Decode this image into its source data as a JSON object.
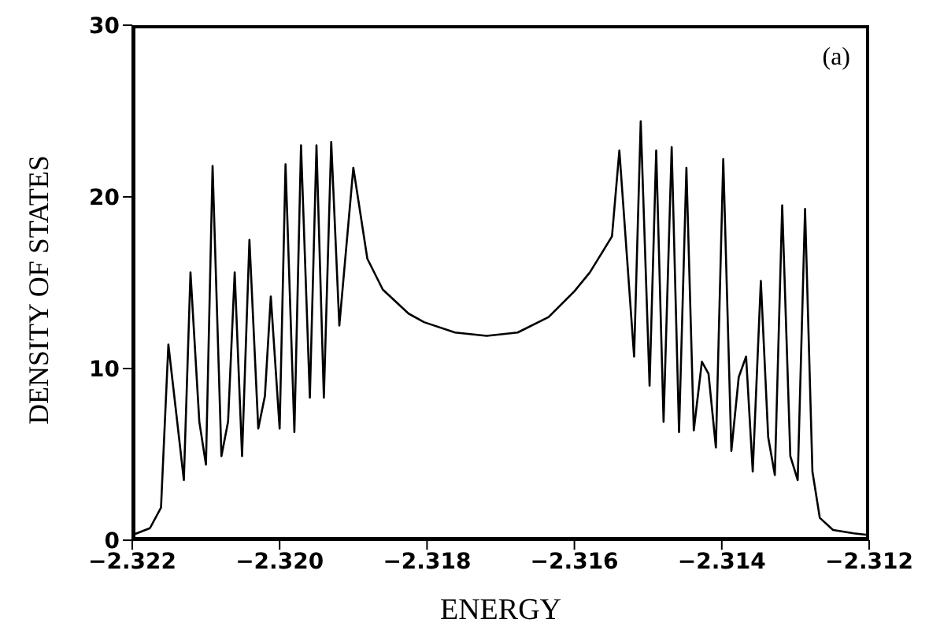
{
  "chart_data": {
    "type": "line",
    "xlabel": "ENERGY",
    "ylabel": "DENSITY OF STATES",
    "annotations": [
      "(a)"
    ],
    "xlim": [
      -2.322,
      -2.312
    ],
    "xticks": [
      {
        "value": -2.322,
        "label": "−2.322"
      },
      {
        "value": -2.32,
        "label": "−2.320"
      },
      {
        "value": -2.318,
        "label": "−2.318"
      },
      {
        "value": -2.316,
        "label": "−2.316"
      },
      {
        "value": -2.314,
        "label": "−2.314"
      },
      {
        "value": -2.312,
        "label": "−2.312"
      }
    ],
    "ylim": [
      0,
      30
    ],
    "yticks": [
      0,
      10,
      20,
      30
    ],
    "grid": false,
    "legend": false,
    "marker": "none",
    "line_style": "solid",
    "series": [
      {
        "color": "#000000",
        "x": [
          -2.322,
          -2.32176,
          -2.32161,
          -2.32151,
          -2.32139,
          -2.3213,
          -2.32121,
          -2.32109,
          -2.321,
          -2.32091,
          -2.32079,
          -2.3207,
          -2.32061,
          -2.32051,
          -2.32041,
          -2.32029,
          -2.3202,
          -2.32012,
          -2.32,
          -2.31992,
          -2.3198,
          -2.31971,
          -2.31959,
          -2.3195,
          -2.3194,
          -2.3193,
          -2.31919,
          -2.319,
          -2.31881,
          -2.3186,
          -2.31825,
          -2.31804,
          -2.31762,
          -2.31719,
          -2.31677,
          -2.31635,
          -2.316,
          -2.31579,
          -2.31549,
          -2.31539,
          -2.31519,
          -2.3151,
          -2.31498,
          -2.31489,
          -2.31479,
          -2.31468,
          -2.31458,
          -2.31448,
          -2.31438,
          -2.31427,
          -2.31418,
          -2.31408,
          -2.31398,
          -2.31387,
          -2.31377,
          -2.31367,
          -2.31358,
          -2.31347,
          -2.31337,
          -2.31328,
          -2.31318,
          -2.31307,
          -2.31297,
          -2.31287,
          -2.31277,
          -2.31267,
          -2.31249,
          -2.31221,
          -2.312
        ],
        "values": [
          0.3,
          0.7,
          1.9,
          11.4,
          6.9,
          3.5,
          15.6,
          6.9,
          4.4,
          21.8,
          4.9,
          6.9,
          15.6,
          4.9,
          17.5,
          6.5,
          8.4,
          14.2,
          6.5,
          21.9,
          6.3,
          23.0,
          8.3,
          23.0,
          8.3,
          23.2,
          12.5,
          21.7,
          16.4,
          14.6,
          13.2,
          12.7,
          12.1,
          11.9,
          12.1,
          13.0,
          14.5,
          15.6,
          17.7,
          22.7,
          10.7,
          24.4,
          9.0,
          22.7,
          6.9,
          22.9,
          6.3,
          21.7,
          6.4,
          10.4,
          9.7,
          5.4,
          22.2,
          5.2,
          9.5,
          10.7,
          4.0,
          15.1,
          6.0,
          3.8,
          19.5,
          4.9,
          3.5,
          19.3,
          4.0,
          1.3,
          0.6,
          0.4,
          0.3
        ]
      }
    ]
  }
}
